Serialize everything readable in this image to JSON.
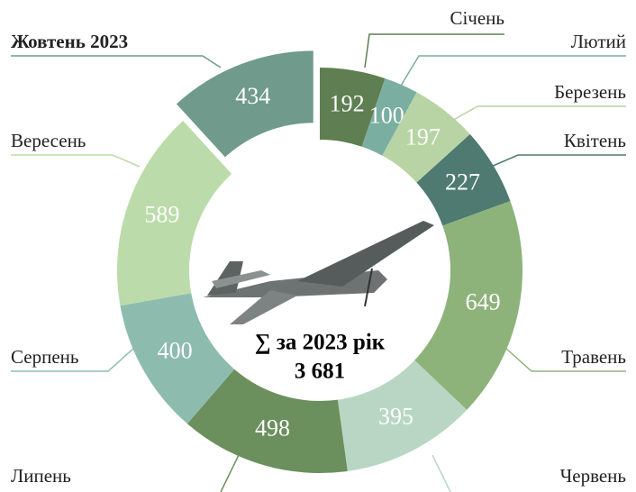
{
  "chart_data": {
    "type": "donut",
    "categories": [
      "Січень",
      "Лютий",
      "Березень",
      "Квітень",
      "Травень",
      "Червень",
      "Липень",
      "Серпень",
      "Вересень",
      "Жовтень 2023"
    ],
    "values": [
      192,
      100,
      197,
      227,
      649,
      395,
      498,
      400,
      589,
      434
    ],
    "colors": [
      "#5f7f52",
      "#7aaea0",
      "#b8d4a4",
      "#4e7a72",
      "#8db37a",
      "#b9d6c4",
      "#6b8f5d",
      "#8dbcaf",
      "#bcdbaa",
      "#6f9a8c"
    ],
    "exploded": [
      9
    ],
    "center_title": "∑ за 2023 рік",
    "total": {
      "value": 3681,
      "label": "3 681"
    }
  }
}
